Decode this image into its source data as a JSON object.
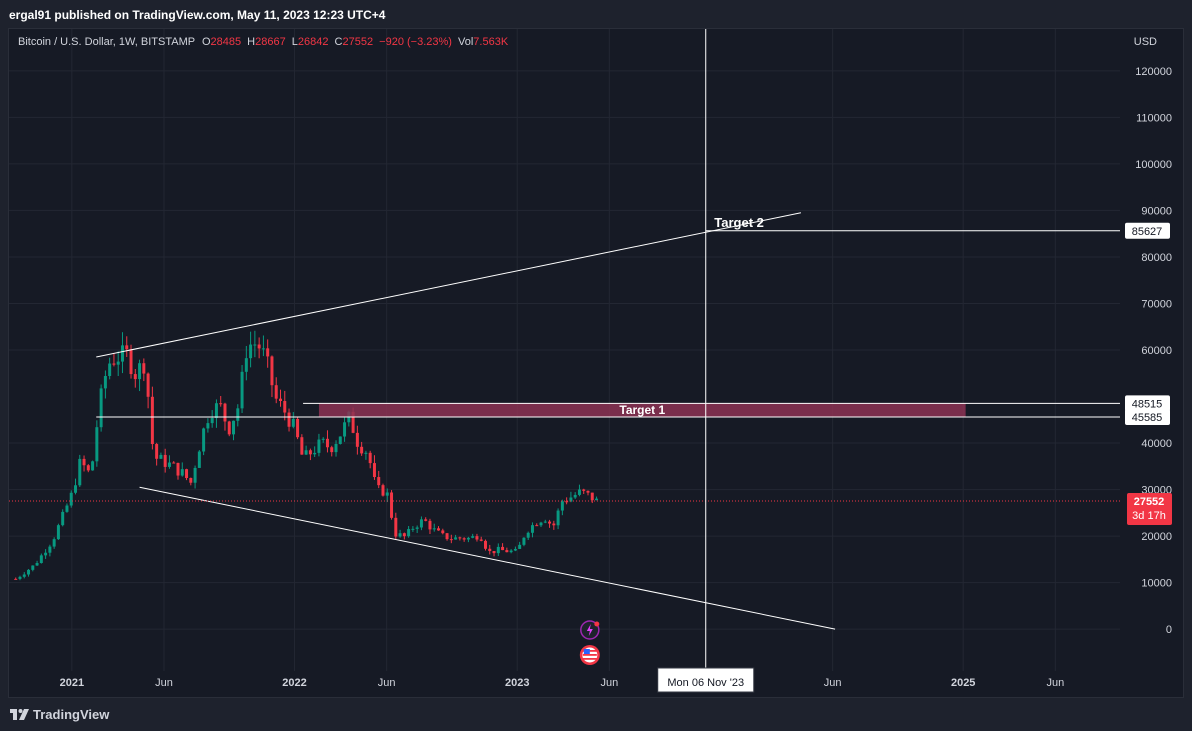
{
  "header": {
    "published_by": "ergal91 published on TradingView.com, May 11, 2023 12:23 UTC+4"
  },
  "legend": {
    "symbol": "Bitcoin / U.S. Dollar, 1W, BITSTAMP",
    "o_label": "O",
    "o_value": "28485",
    "h_label": "H",
    "h_value": "28667",
    "l_label": "L",
    "l_value": "26842",
    "c_label": "C",
    "c_value": "27552",
    "change": "−920 (−3.23%)",
    "vol_label": "Vol",
    "vol_value": "7.563K"
  },
  "footer": {
    "brand": "TradingView"
  },
  "colors": {
    "bull": "#089981",
    "bear": "#f23645",
    "background": "#161a25",
    "zone": "#8c3354",
    "grid": "#232733"
  },
  "icons": [
    "lightning-event-icon",
    "us-flag-event-icon",
    "tradingview-logo-icon"
  ],
  "chart_data": {
    "type": "candlestick",
    "currency_label": "USD",
    "timeframe": "1W",
    "y_ticks": [
      0,
      10000,
      20000,
      30000,
      40000,
      60000,
      70000,
      80000,
      90000,
      100000,
      110000,
      120000
    ],
    "ylim": [
      -9000,
      129000
    ],
    "x_ticks": [
      {
        "label": "2021",
        "date": "2021-01-01"
      },
      {
        "label": "Jun",
        "date": "2021-06-01"
      },
      {
        "label": "2022",
        "date": "2022-01-01"
      },
      {
        "label": "Jun",
        "date": "2022-06-01"
      },
      {
        "label": "2023",
        "date": "2023-01-01"
      },
      {
        "label": "Jun",
        "date": "2023-06-01"
      },
      {
        "label": "Jun",
        "date": "2024-06-01"
      },
      {
        "label": "2025",
        "date": "2025-01-01"
      },
      {
        "label": "Jun",
        "date": "2025-06-01"
      }
    ],
    "xlim": [
      "2020-09-20",
      "2025-09-15"
    ],
    "price_series": [
      [
        "2020-10-01",
        10800
      ],
      [
        "2020-11-01",
        13800
      ],
      [
        "2020-12-01",
        19200
      ],
      [
        "2021-01-01",
        29000
      ],
      [
        "2021-01-15",
        36000
      ],
      [
        "2021-02-01",
        33000
      ],
      [
        "2021-02-15",
        48000
      ],
      [
        "2021-03-01",
        57000
      ],
      [
        "2021-03-15",
        58500
      ],
      [
        "2021-04-01",
        59000
      ],
      [
        "2021-04-15",
        55000
      ],
      [
        "2021-05-01",
        57500
      ],
      [
        "2021-05-15",
        37000
      ],
      [
        "2021-06-01",
        36000
      ],
      [
        "2021-06-15",
        35000
      ],
      [
        "2021-07-01",
        33500
      ],
      [
        "2021-07-15",
        31500
      ],
      [
        "2021-08-01",
        41000
      ],
      [
        "2021-08-15",
        47000
      ],
      [
        "2021-09-01",
        48000
      ],
      [
        "2021-09-15",
        43000
      ],
      [
        "2021-10-01",
        48000
      ],
      [
        "2021-10-15",
        61000
      ],
      [
        "2021-11-01",
        61500
      ],
      [
        "2021-11-15",
        58000
      ],
      [
        "2021-12-01",
        49500
      ],
      [
        "2021-12-15",
        47000
      ],
      [
        "2022-01-01",
        43000
      ],
      [
        "2022-01-15",
        36500
      ],
      [
        "2022-02-01",
        38500
      ],
      [
        "2022-02-15",
        40000
      ],
      [
        "2022-03-01",
        39000
      ],
      [
        "2022-03-15",
        41500
      ],
      [
        "2022-04-01",
        45500
      ],
      [
        "2022-04-15",
        40000
      ],
      [
        "2022-05-01",
        38000
      ],
      [
        "2022-05-15",
        30000
      ],
      [
        "2022-06-01",
        29500
      ],
      [
        "2022-06-15",
        20500
      ],
      [
        "2022-07-01",
        19800
      ],
      [
        "2022-07-15",
        22000
      ],
      [
        "2022-08-01",
        23500
      ],
      [
        "2022-08-15",
        21500
      ],
      [
        "2022-09-01",
        20000
      ],
      [
        "2022-09-15",
        19500
      ],
      [
        "2022-10-01",
        19600
      ],
      [
        "2022-10-15",
        19500
      ],
      [
        "2022-11-01",
        20300
      ],
      [
        "2022-11-15",
        16500
      ],
      [
        "2022-12-01",
        17000
      ],
      [
        "2022-12-15",
        16800
      ],
      [
        "2023-01-01",
        16600
      ],
      [
        "2023-01-15",
        21000
      ],
      [
        "2023-02-01",
        23000
      ],
      [
        "2023-02-15",
        24000
      ],
      [
        "2023-03-01",
        22000
      ],
      [
        "2023-03-15",
        27500
      ],
      [
        "2023-04-01",
        28500
      ],
      [
        "2023-04-15",
        29500
      ],
      [
        "2023-05-01",
        28500
      ],
      [
        "2023-05-11",
        27552
      ]
    ],
    "last_price": {
      "value": 27552,
      "label": "27552",
      "countdown": "3d 17h"
    },
    "trend_lines": [
      {
        "start": [
          "2021-02-10",
          58500
        ],
        "end": [
          "2024-04-10",
          89500
        ]
      },
      {
        "start": [
          "2021-04-22",
          30500
        ],
        "end": [
          "2024-06-05",
          0
        ]
      }
    ],
    "levels": [
      {
        "value": 85627,
        "label": "85627",
        "from": "2023-11-06"
      },
      {
        "value": 48515,
        "label": "48515",
        "from": "2022-01-15"
      },
      {
        "value": 45585,
        "label": "45585",
        "from": "2021-02-10"
      }
    ],
    "zones": [
      {
        "label": "Target 1",
        "from": "2022-02-10",
        "to": "2025-01-05",
        "low": 45585,
        "high": 48515
      }
    ],
    "annotations": [
      {
        "text": "Target 2",
        "date": "2023-11-20",
        "value": 87500
      }
    ],
    "crosshair": {
      "date": "2023-11-06",
      "label": "Mon 06 Nov '23"
    },
    "events": [
      {
        "date": "2023-04-30",
        "icon": "lightning-event-icon"
      },
      {
        "date": "2023-04-30",
        "icon": "us-flag-event-icon"
      }
    ]
  }
}
